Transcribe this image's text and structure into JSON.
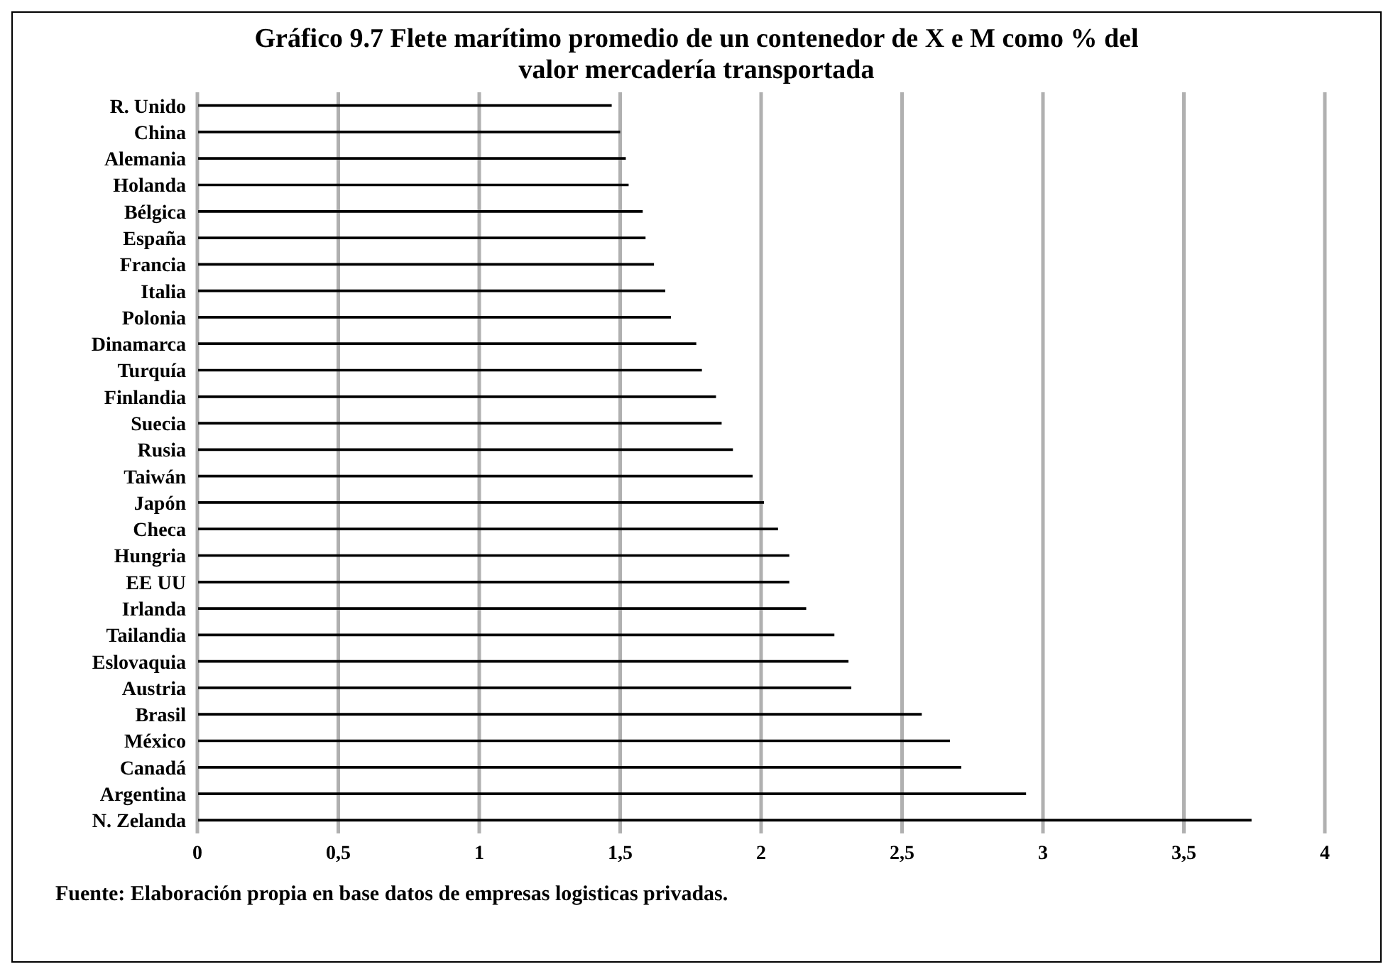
{
  "chart_data": {
    "type": "bar",
    "orientation": "horizontal",
    "title": "Gráfico 9.7 Flete marítimo promedio de un contenedor de X e M como % del valor mercadería transportada",
    "categories": [
      "R. Unido",
      "China",
      "Alemania",
      "Holanda",
      "Bélgica",
      "España",
      "Francia",
      "Italia",
      "Polonia",
      "Dinamarca",
      "Turquía",
      "Finlandia",
      "Suecia",
      "Rusia",
      "Taiwán",
      "Japón",
      "Checa",
      "Hungria",
      "EE UU",
      "Irlanda",
      "Tailandia",
      "Eslovaquia",
      "Austria",
      "Brasil",
      "México",
      "Canadá",
      "Argentina",
      "N. Zelanda"
    ],
    "values": [
      1.47,
      1.5,
      1.52,
      1.53,
      1.58,
      1.59,
      1.62,
      1.66,
      1.68,
      1.77,
      1.79,
      1.84,
      1.86,
      1.9,
      1.97,
      2.01,
      2.06,
      2.1,
      2.1,
      2.16,
      2.26,
      2.31,
      2.32,
      2.57,
      2.67,
      2.71,
      2.94,
      3.74
    ],
    "color": "#000000",
    "xlim": [
      0,
      4
    ],
    "xticks": [
      0,
      {
        "value": 0.5,
        "label": "0,5"
      },
      1,
      {
        "value": 1.5,
        "label": "1,5"
      },
      2,
      {
        "value": 2.5,
        "label": "2,5"
      },
      3,
      {
        "value": 3.5,
        "label": "3,5"
      },
      4
    ],
    "grid": "x",
    "annotations": [
      "Fuente: Elaboración propia  en base datos de  empresas logisticas privadas."
    ]
  }
}
